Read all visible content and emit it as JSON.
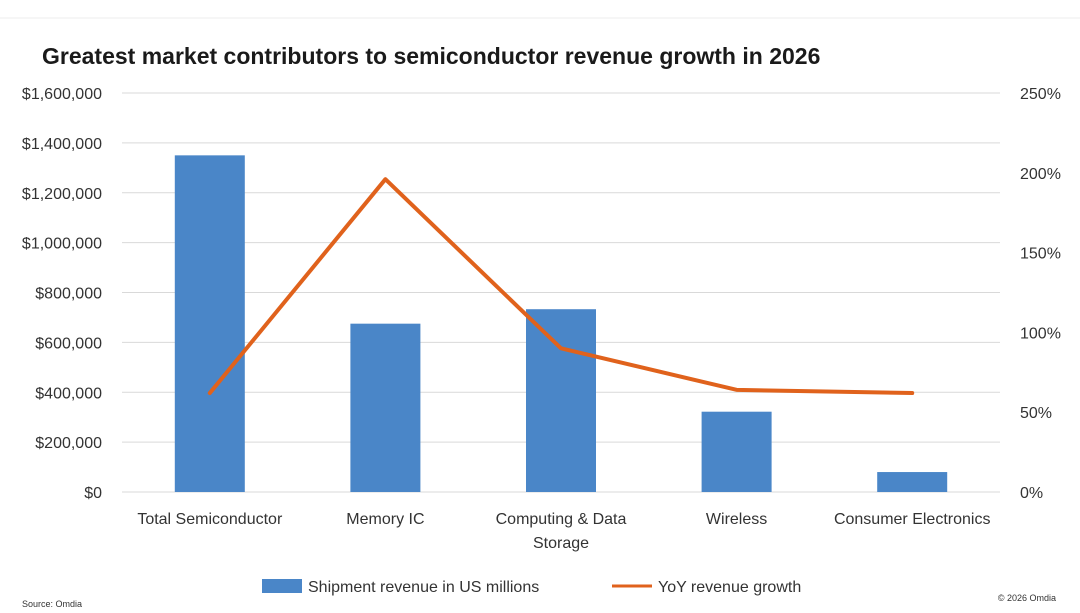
{
  "chart_data": {
    "type": "bar",
    "title": "Greatest market contributors to semiconductor revenue growth in 2026",
    "categories": [
      "Total Semiconductor",
      "Memory IC",
      "Computing & Data Storage",
      "Wireless",
      "Consumer Electronics"
    ],
    "category_lines": [
      [
        "Total Semiconductor"
      ],
      [
        "Memory IC"
      ],
      [
        "Computing & Data",
        "Storage"
      ],
      [
        "Wireless"
      ],
      [
        "Consumer Electronics"
      ]
    ],
    "series": [
      {
        "name": "Shipment revenue in US millions",
        "type": "bar",
        "axis": "left",
        "color": "#4a86c8",
        "values": [
          1350000,
          675000,
          733000,
          322000,
          80000
        ]
      },
      {
        "name": "YoY revenue growth",
        "type": "line",
        "axis": "right",
        "color": "#e0621c",
        "values": [
          62,
          196,
          90,
          64,
          62
        ]
      }
    ],
    "y_left": {
      "min": 0,
      "max": 1600000,
      "step": 200000,
      "tick_labels": [
        "$0",
        "$200,000",
        "$400,000",
        "$600,000",
        "$800,000",
        "$1,000,000",
        "$1,200,000",
        "$1,400,000",
        "$1,600,000"
      ]
    },
    "y_right": {
      "min": 0,
      "max": 250,
      "step": 50,
      "tick_labels": [
        "0%",
        "50%",
        "100%",
        "150%",
        "200%",
        "250%"
      ]
    },
    "grid": true,
    "legend_position": "bottom"
  },
  "footer": {
    "source": "Source: Omdia",
    "copyright": "© 2026 Omdia"
  },
  "colors": {
    "bar": "#4a86c8",
    "line": "#e0621c",
    "grid": "#d9d9d9"
  }
}
